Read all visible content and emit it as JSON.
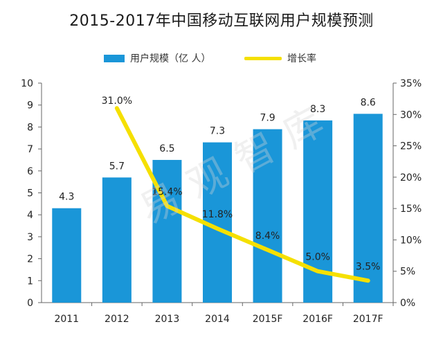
{
  "title": "2015-2017年中国移动互联网用户规模预测",
  "watermark": "易观智库",
  "colors": {
    "bar": "#1a96d8",
    "line": "#f5e000",
    "axis": "#666666",
    "grid": "#d8d8d8"
  },
  "chart_data": {
    "type": "bar",
    "categories": [
      "2011",
      "2012",
      "2013",
      "2014",
      "2015F",
      "2016F",
      "2017F"
    ],
    "series": [
      {
        "name": "用户规模（亿 人）",
        "type": "bar",
        "axis": "left",
        "values": [
          4.3,
          5.7,
          6.5,
          7.3,
          7.9,
          8.3,
          8.6
        ],
        "labels": [
          "4.3",
          "5.7",
          "6.5",
          "7.3",
          "7.9",
          "8.3",
          "8.6"
        ]
      },
      {
        "name": "增长率",
        "type": "line",
        "axis": "right",
        "values": [
          null,
          31.0,
          15.4,
          11.8,
          8.4,
          5.0,
          3.5
        ],
        "labels": [
          "",
          "31.0%",
          "15.4%",
          "11.8%",
          "8.4%",
          "5.0%",
          "3.5%"
        ]
      }
    ],
    "ylim": [
      0,
      10
    ],
    "y2lim": [
      0,
      35
    ],
    "yticks": [
      "0",
      "1",
      "2",
      "3",
      "4",
      "5",
      "6",
      "7",
      "8",
      "9",
      "10"
    ],
    "y2ticks": [
      "0%",
      "5%",
      "10%",
      "15%",
      "20%",
      "25%",
      "30%",
      "35%"
    ],
    "legend_position": "top",
    "grid": false
  }
}
